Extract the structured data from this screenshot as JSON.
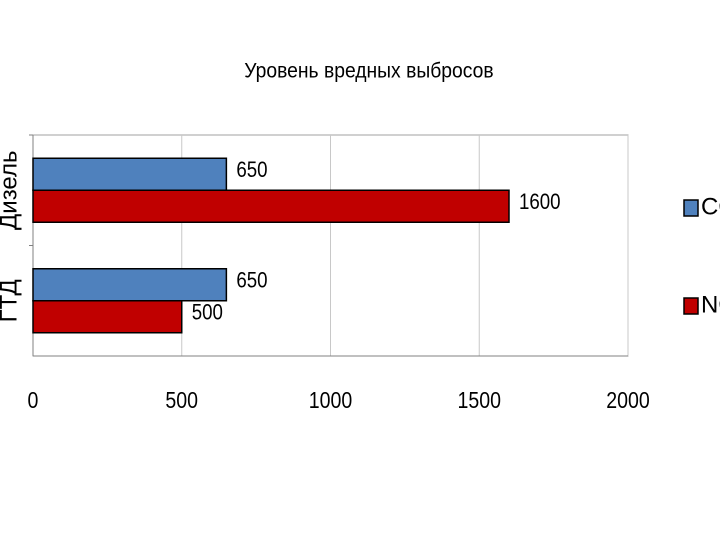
{
  "chart_data": {
    "type": "bar",
    "orientation": "horizontal",
    "title": "Уровень вредных выбросов",
    "categories": [
      "Дизель",
      "ГТД"
    ],
    "series": [
      {
        "name": "CO",
        "color": "#4f81bd",
        "values": [
          650,
          650
        ]
      },
      {
        "name": "NO",
        "color": "#c00000",
        "values": [
          1600,
          500
        ]
      }
    ],
    "xlim": [
      0,
      2000
    ],
    "xticks": [
      0,
      500,
      1000,
      1500,
      2000
    ],
    "grid": true,
    "legend": "right",
    "data_labels": true
  }
}
